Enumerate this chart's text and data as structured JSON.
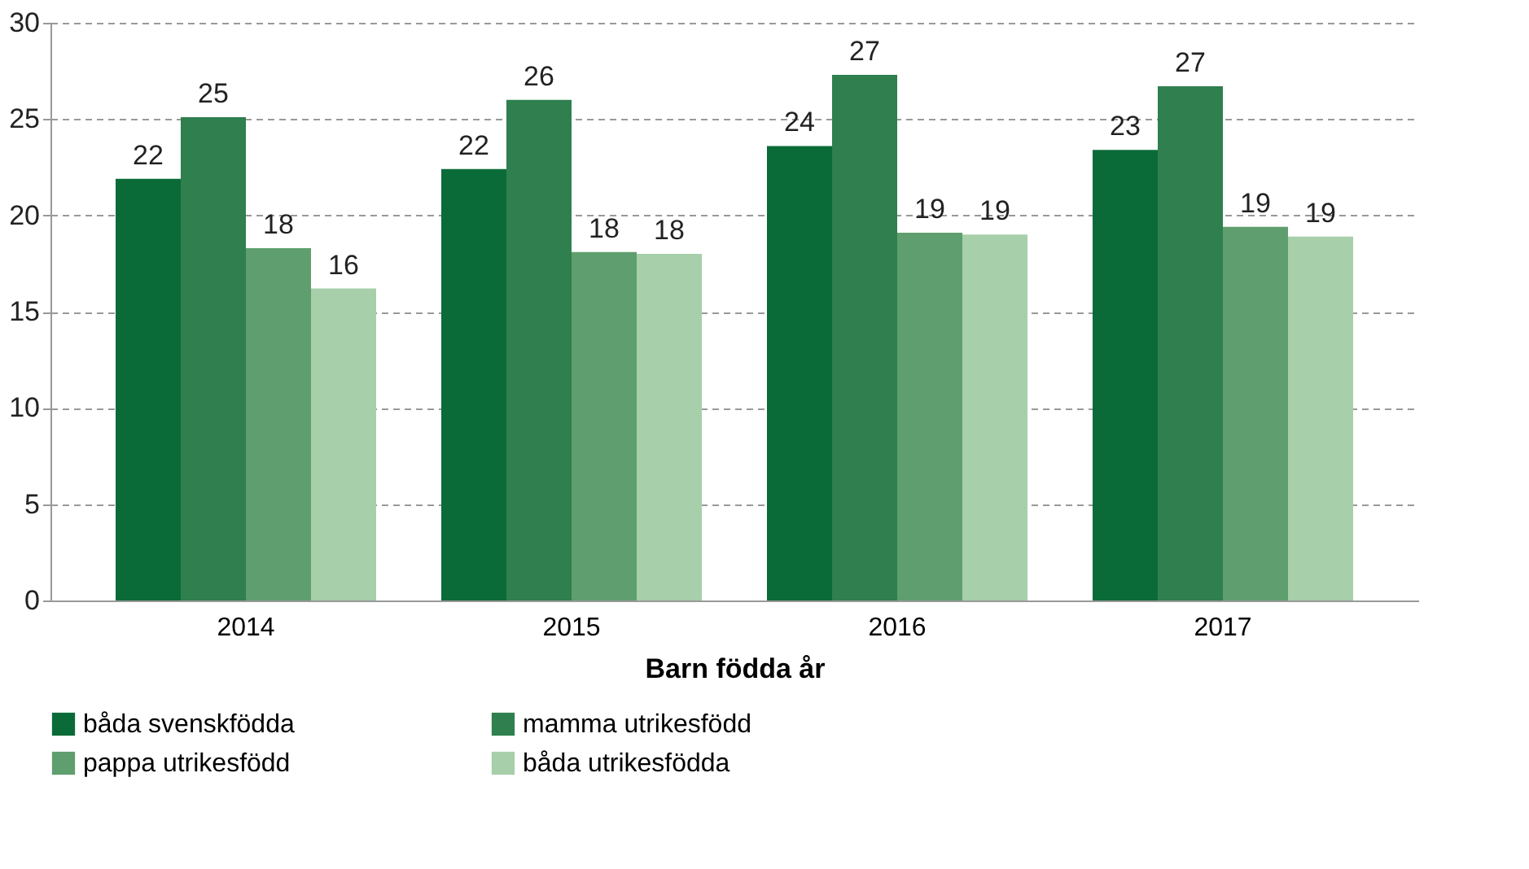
{
  "chart_data": {
    "type": "bar",
    "xlabel": "Barn födda år",
    "categories": [
      "2014",
      "2015",
      "2016",
      "2017"
    ],
    "series": [
      {
        "name": "båda svenskfödda",
        "color": "#0b6b38",
        "values": [
          21.9,
          22.4,
          23.6,
          23.4
        ],
        "value_labels": [
          "22",
          "22",
          "24",
          "23"
        ]
      },
      {
        "name": "mamma utrikesfödd",
        "color": "#2f7f4f",
        "values": [
          25.1,
          26.0,
          27.3,
          26.7
        ],
        "value_labels": [
          "25",
          "26",
          "27",
          "27"
        ]
      },
      {
        "name": "pappa utrikesfödd",
        "color": "#5f9e6e",
        "values": [
          18.3,
          18.1,
          19.1,
          19.4
        ],
        "value_labels": [
          "18",
          "18",
          "19",
          "19"
        ]
      },
      {
        "name": "båda utrikesfödda",
        "color": "#a6cfaa",
        "values": [
          16.2,
          18.0,
          19.0,
          18.9
        ],
        "value_labels": [
          "16",
          "18",
          "19",
          "19"
        ]
      }
    ],
    "ylim": [
      0,
      30
    ],
    "yticks": [
      0,
      5,
      10,
      15,
      20,
      25,
      30
    ],
    "grid": "y",
    "legend": "bottom"
  }
}
